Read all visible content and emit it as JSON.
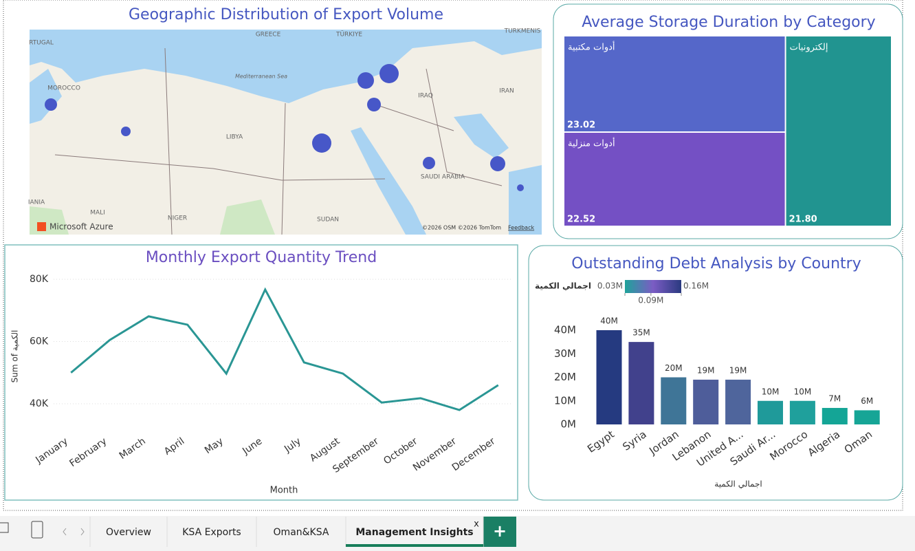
{
  "map": {
    "title": "Geographic Distribution of Export Volume",
    "labels": [
      "GREECE",
      "TÜRKIYE",
      "TURKMENIS",
      "RTUGAL",
      "MOROCCO",
      "Mediterranean Sea",
      "LIBYA",
      "IRAQ",
      "IRAN",
      "SAUDI ARABIA",
      "IANIA",
      "MALI",
      "NIGER",
      "SUDAN"
    ],
    "brand": "Microsoft Azure",
    "attribution": "©2026 OSM ©2026 TomTom",
    "feedback": "Feedback"
  },
  "chart_data": [
    {
      "type": "treemap",
      "title": "Average Storage Duration by Category",
      "categories": [
        "أدوات مكتبية",
        "أدوات منزلية",
        "إلكترونيات"
      ],
      "values": [
        23.02,
        22.52,
        21.8
      ],
      "value_labels": [
        "23.02",
        "22.52",
        "21.80"
      ],
      "colors": [
        "#5567c9",
        "#7450c4",
        "#219490"
      ]
    },
    {
      "type": "line",
      "title": "Monthly Export Quantity Trend",
      "xlabel": "Month",
      "ylabel": "Sum of الكمية",
      "categories": [
        "January",
        "February",
        "March",
        "April",
        "May",
        "June",
        "July",
        "August",
        "September",
        "October",
        "November",
        "December"
      ],
      "values": [
        50000,
        60500,
        68100,
        65400,
        49700,
        76700,
        53300,
        49700,
        40400,
        41800,
        38000,
        46000
      ],
      "color": "#2a9694",
      "ylim": [
        34000,
        82000
      ],
      "yticks": [
        {
          "value": 40000,
          "label": "40K"
        },
        {
          "value": 60000,
          "label": "60K"
        },
        {
          "value": 80000,
          "label": "80K"
        }
      ],
      "grid": true
    },
    {
      "type": "bar",
      "title": "Outstanding Debt Analysis by Country",
      "xlabel": "اجمالي الكمية",
      "categories": [
        "Egypt",
        "Syria",
        "Jordan",
        "Lebanon",
        "United A...",
        "Saudi Ar...",
        "Morocco",
        "Algeria",
        "Oman"
      ],
      "values": [
        40000000,
        35000000,
        20000000,
        19000000,
        19000000,
        10000000,
        10000000,
        7000000,
        6000000
      ],
      "value_labels": [
        "40M",
        "35M",
        "20M",
        "19M",
        "19M",
        "10M",
        "10M",
        "7M",
        "6M"
      ],
      "colors": [
        "#253a80",
        "#41418c",
        "#3f7597",
        "#4e5d9a",
        "#4f659c",
        "#1f9a9a",
        "#1fa09c",
        "#14a596",
        "#16a596"
      ],
      "ylim": [
        0,
        40000000
      ],
      "yticks": [
        {
          "value": 0,
          "label": "0M"
        },
        {
          "value": 10000000,
          "label": "10M"
        },
        {
          "value": 20000000,
          "label": "20M"
        },
        {
          "value": 30000000,
          "label": "30M"
        },
        {
          "value": 40000000,
          "label": "40M"
        }
      ],
      "colorbar": {
        "title": "اجمالي الكمية",
        "colors": [
          "#1fa39a",
          "#7b5cc4",
          "#2a3a80"
        ],
        "ticks": [
          {
            "value": 30000,
            "label": "0.03M"
          },
          {
            "value": 90000,
            "label": "0.09M"
          },
          {
            "value": 160000,
            "label": "0.16M"
          }
        ]
      }
    }
  ],
  "tabs": [
    "Overview",
    "KSA Exports",
    "Oman&KSA",
    "Management Insights"
  ],
  "close": "x",
  "add": "+"
}
